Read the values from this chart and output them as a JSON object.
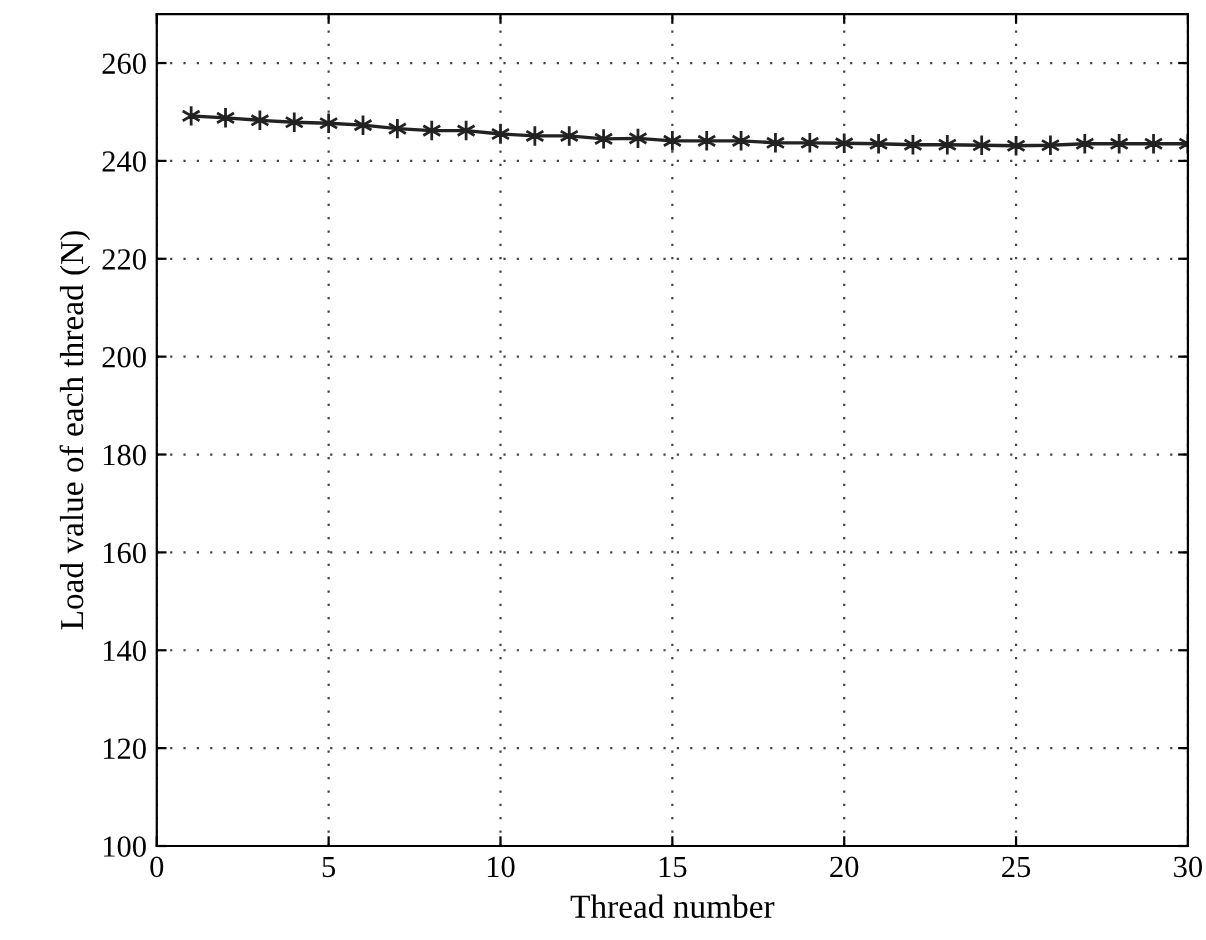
{
  "chart_data": {
    "type": "line",
    "xlabel": "Thread number",
    "ylabel": "Load value of each thread (N)",
    "x": [
      1,
      2,
      3,
      4,
      5,
      6,
      7,
      8,
      9,
      10,
      11,
      12,
      13,
      14,
      15,
      16,
      17,
      18,
      19,
      20,
      21,
      22,
      23,
      24,
      25,
      26,
      27,
      28,
      29,
      30
    ],
    "series": [
      {
        "color": "#222222",
        "values": [
          249.2,
          248.8,
          248.3,
          247.9,
          247.7,
          247.3,
          246.6,
          246.2,
          246.2,
          245.5,
          245.1,
          245.1,
          244.5,
          244.6,
          244.1,
          244.1,
          244.1,
          243.7,
          243.7,
          243.6,
          243.5,
          243.3,
          243.3,
          243.2,
          243.1,
          243.2,
          243.5,
          243.5,
          243.5,
          243.5
        ]
      }
    ],
    "xlim": [
      0,
      30
    ],
    "xticks": [
      0,
      5,
      10,
      15,
      20,
      25,
      30
    ],
    "ylim": [
      100,
      270
    ],
    "yticks": [
      100,
      120,
      140,
      160,
      180,
      200,
      220,
      240,
      260
    ],
    "grid": true,
    "marker": "cross",
    "line_style": "solid"
  }
}
